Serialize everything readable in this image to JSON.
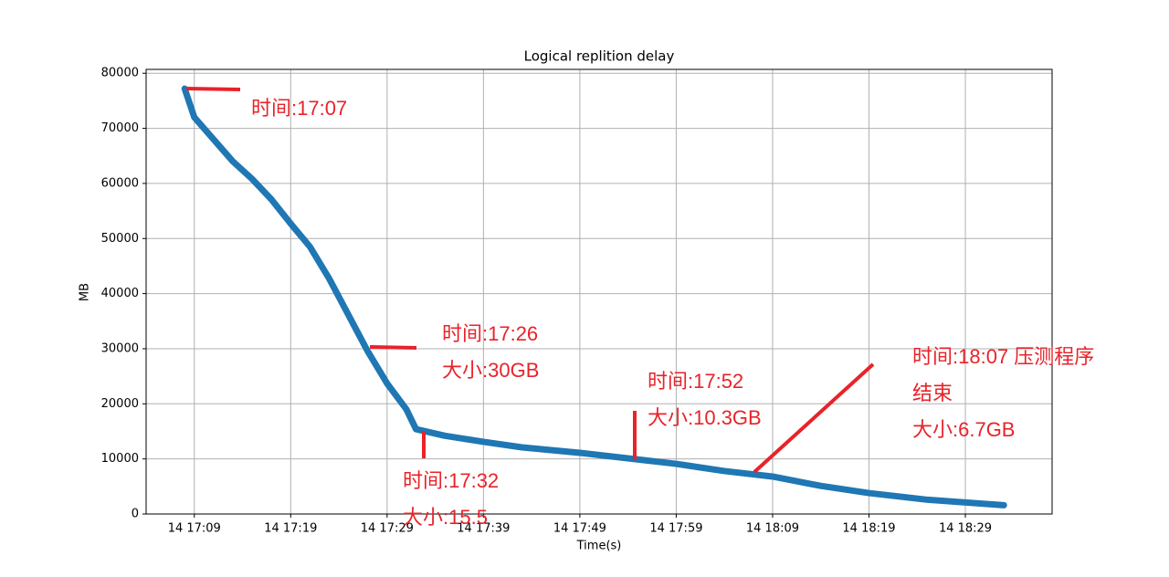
{
  "chart_data": {
    "type": "line",
    "title": "Logical replition delay",
    "x_label": "Time(s)",
    "y_label": "MB",
    "color": "#1f77b4",
    "grid": true,
    "x": [
      "14 17:08",
      "14 17:09",
      "14 17:11",
      "14 17:13",
      "14 17:15",
      "14 17:17",
      "14 17:19",
      "14 17:21",
      "14 17:23",
      "14 17:25",
      "14 17:27",
      "14 17:29",
      "14 17:31",
      "14 17:32",
      "14 17:35",
      "14 17:39",
      "14 17:43",
      "14 17:49",
      "14 17:55",
      "14 17:59",
      "14 18:04",
      "14 18:09",
      "14 18:14",
      "14 18:19",
      "14 18:25",
      "14 18:33"
    ],
    "values": [
      77200,
      72000,
      68000,
      64000,
      60800,
      57100,
      52700,
      48500,
      42700,
      36100,
      29500,
      23700,
      19000,
      15400,
      14200,
      13100,
      12100,
      11100,
      9900,
      9100,
      7800,
      6800,
      5100,
      3800,
      2600,
      1600
    ],
    "xlim": [
      "14 17:04",
      "14 18:38"
    ],
    "xticks": [
      "14 17:09",
      "14 17:19",
      "14 17:29",
      "14 17:39",
      "14 17:49",
      "14 17:59",
      "14 18:09",
      "14 18:19",
      "14 18:29"
    ],
    "ylim": [
      0,
      80700
    ],
    "yticks": [
      0,
      10000,
      20000,
      30000,
      40000,
      50000,
      60000,
      70000,
      80000
    ],
    "annotations": [
      [
        "时间:17:07"
      ],
      [
        "时间:17:26",
        "大小:30GB"
      ],
      [
        "时间:17:32",
        "大小:15.5"
      ],
      [
        "时间:17:52",
        "大小:10.3GB"
      ],
      [
        "时间:18:07 压测程序",
        "结束",
        "大小:6.7GB"
      ]
    ]
  }
}
